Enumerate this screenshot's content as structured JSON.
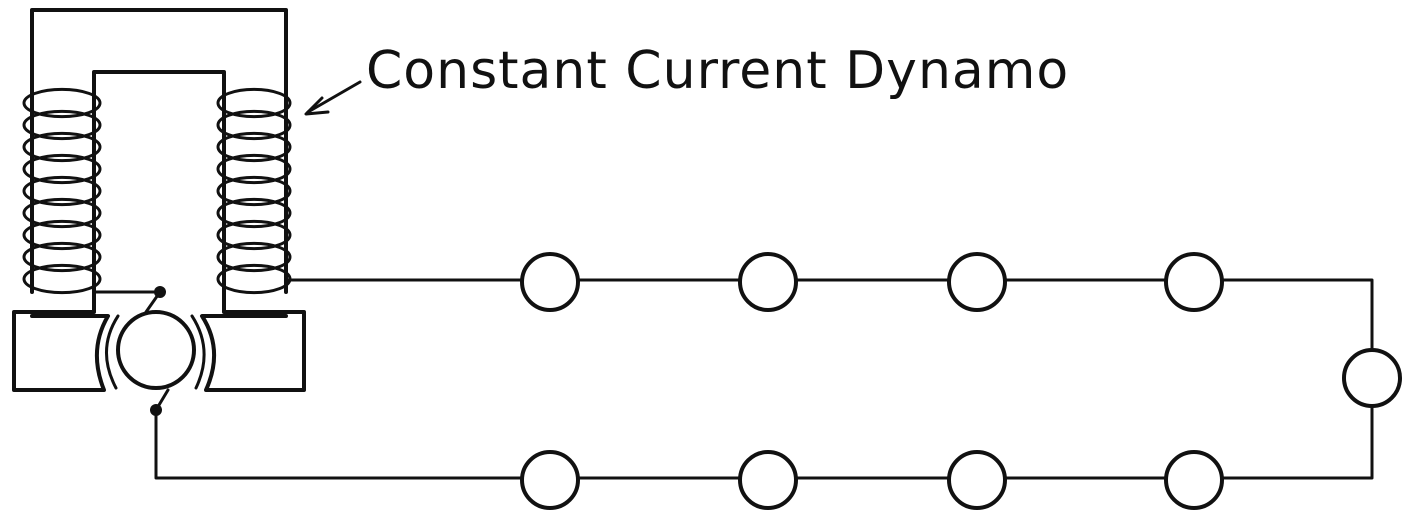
{
  "diagram": {
    "label": "Constant Current Dynamo",
    "ink_color": "#111111",
    "background_color": "#ffffff",
    "lamp_count_top": 4,
    "lamp_count_right": 1,
    "lamp_count_bottom": 4
  }
}
